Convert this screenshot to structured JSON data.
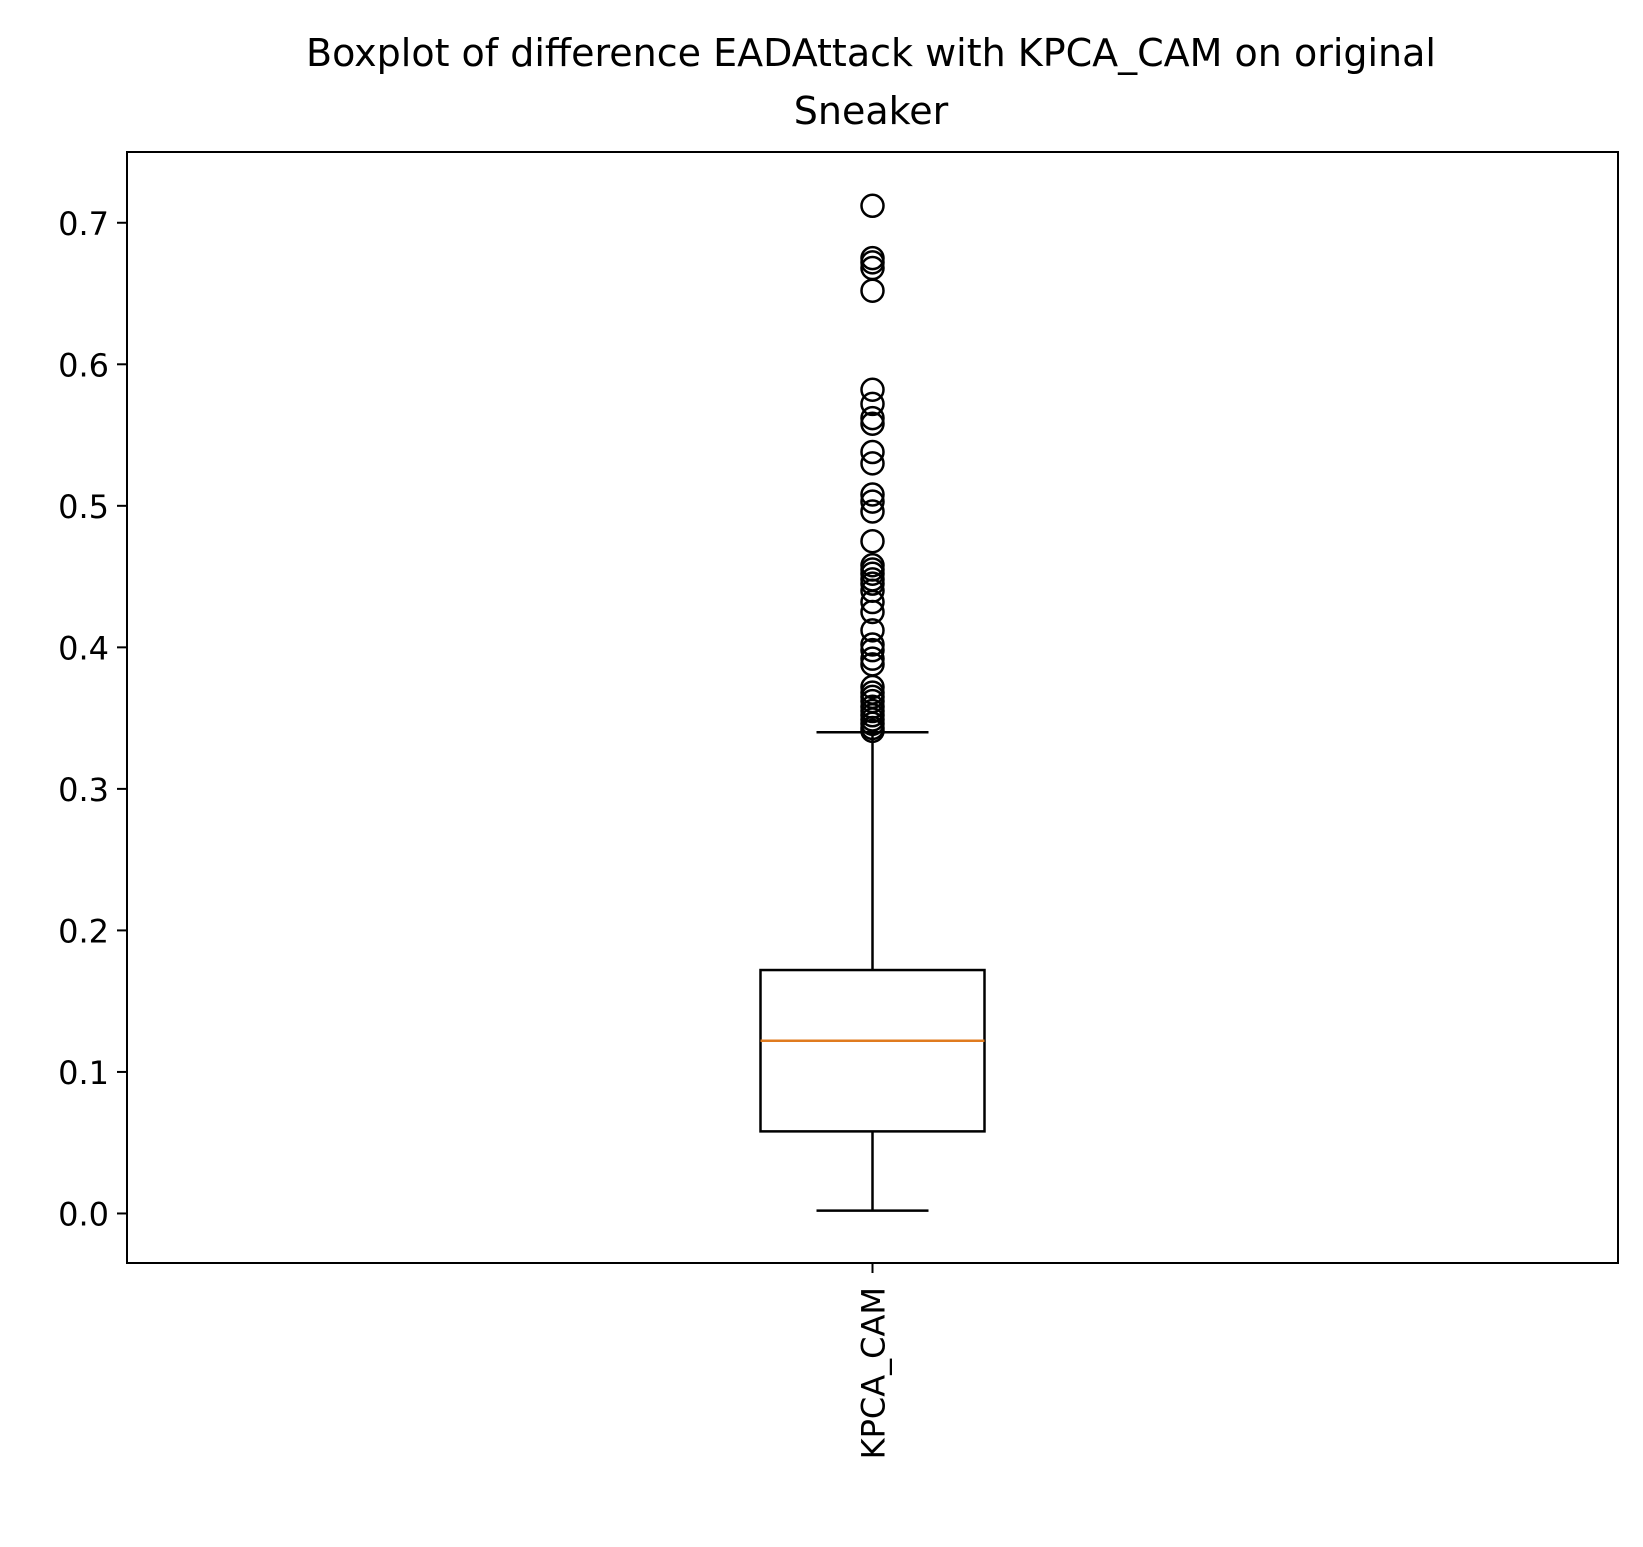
{
  "chart_data": {
    "type": "boxplot",
    "title": "Boxplot of difference EADAttack with KPCA_CAM on original Sneaker",
    "title_lines": [
      "Boxplot of difference EADAttack with KPCA_CAM on original",
      "Sneaker"
    ],
    "xlabel": "",
    "ylabel": "",
    "categories": [
      "KPCA_CAM"
    ],
    "ylim": [
      -0.035,
      0.75
    ],
    "yticks": [
      0.0,
      0.1,
      0.2,
      0.3,
      0.4,
      0.5,
      0.6,
      0.7
    ],
    "ytick_labels": [
      "0.0",
      "0.1",
      "0.2",
      "0.3",
      "0.4",
      "0.5",
      "0.6",
      "0.7"
    ],
    "grid": false,
    "boxes": [
      {
        "category": "KPCA_CAM",
        "whisker_low": 0.002,
        "q1": 0.058,
        "median": 0.122,
        "q3": 0.172,
        "whisker_high": 0.34,
        "outliers": [
          0.712,
          0.675,
          0.672,
          0.668,
          0.652,
          0.582,
          0.572,
          0.562,
          0.558,
          0.538,
          0.53,
          0.508,
          0.503,
          0.496,
          0.475,
          0.458,
          0.455,
          0.452,
          0.448,
          0.445,
          0.44,
          0.432,
          0.425,
          0.412,
          0.402,
          0.398,
          0.392,
          0.388,
          0.372,
          0.368,
          0.365,
          0.362,
          0.358,
          0.355,
          0.352,
          0.349,
          0.346,
          0.343,
          0.341
        ]
      }
    ],
    "colors": {
      "box": "#000000",
      "median": "#e07b1f",
      "outlier_edge": "#000000"
    }
  }
}
